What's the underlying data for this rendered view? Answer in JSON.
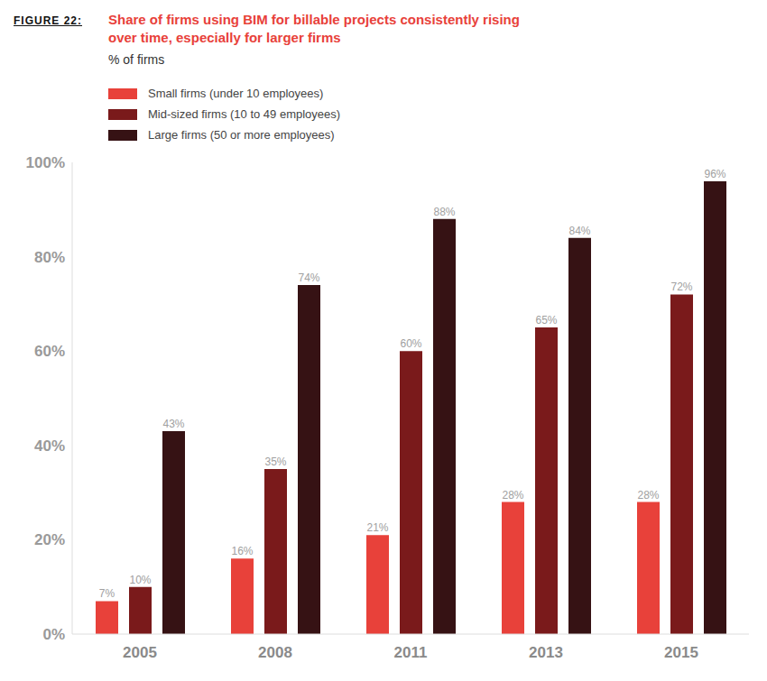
{
  "chart_data": {
    "type": "bar",
    "figure_label": "FIGURE 22:",
    "title": "Share of firms using BIM for billable projects consistently rising over time, especially for larger firms",
    "subtitle": "% of firms",
    "categories": [
      "2005",
      "2008",
      "2011",
      "2013",
      "2015"
    ],
    "series": [
      {
        "name": "Small firms (under 10 employees)",
        "color": "#e8413a",
        "values": [
          7,
          16,
          21,
          28,
          28
        ],
        "value_labels": [
          "7%",
          "16%",
          "21%",
          "28%",
          "28%"
        ]
      },
      {
        "name": "Mid-sized firms (10 to 49 employees)",
        "color": "#7a1a1b",
        "values": [
          10,
          35,
          60,
          65,
          72
        ],
        "value_labels": [
          "10%",
          "35%",
          "60%",
          "65%",
          "72%"
        ]
      },
      {
        "name": "Large firms (50 or more employees)",
        "color": "#361214",
        "values": [
          43,
          74,
          88,
          84,
          96
        ],
        "value_labels": [
          "43%",
          "74%",
          "88%",
          "84%",
          "96%"
        ]
      }
    ],
    "ylim": [
      0,
      100
    ],
    "yticks": [
      {
        "value": 0,
        "label": "0%"
      },
      {
        "value": 20,
        "label": "20%"
      },
      {
        "value": 40,
        "label": "40%"
      },
      {
        "value": 60,
        "label": "60%"
      },
      {
        "value": 80,
        "label": "80%"
      },
      {
        "value": 100,
        "label": "100%"
      }
    ],
    "grid": false,
    "legend": "top-left",
    "data_labels": true
  }
}
